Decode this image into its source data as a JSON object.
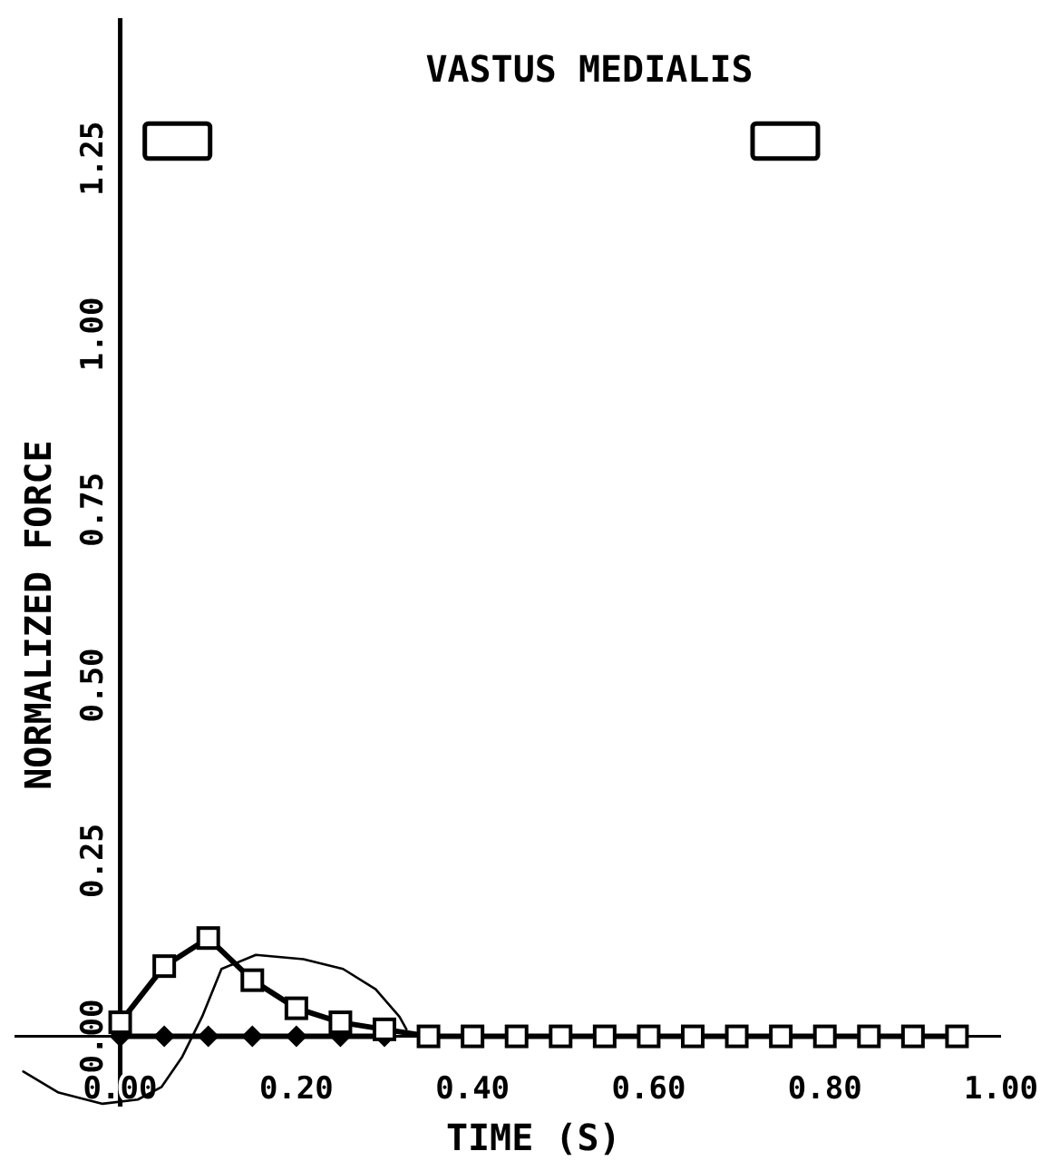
{
  "chart_data": {
    "type": "line",
    "title": "VASTUS MEDIALIS",
    "xlabel": "TIME (S)",
    "ylabel": "NORMALIZED FORCE",
    "xlim": [
      -0.12,
      1.0
    ],
    "ylim": [
      -0.1,
      1.45
    ],
    "xticks": [
      {
        "value": 0,
        "label": "0.00"
      },
      {
        "value": 0.2,
        "label": "0.20"
      },
      {
        "value": 0.4,
        "label": "0.40"
      },
      {
        "value": 0.6,
        "label": "0.60"
      },
      {
        "value": 0.8,
        "label": "0.80"
      },
      {
        "value": 1.0,
        "label": "1.00"
      }
    ],
    "yticks": [
      {
        "value": 0,
        "label": "0.00"
      },
      {
        "value": 0.25,
        "label": "0.25"
      },
      {
        "value": 0.5,
        "label": "0.50"
      },
      {
        "value": 0.75,
        "label": "0.75"
      },
      {
        "value": 1.0,
        "label": "1.00"
      },
      {
        "value": 1.25,
        "label": "1.25"
      }
    ],
    "series": [
      {
        "color": "#000000",
        "marker": "diamond",
        "x": [
          0,
          0.05,
          0.1,
          0.15,
          0.2,
          0.25,
          0.3
        ],
        "values": [
          0,
          0,
          0,
          0,
          0,
          0,
          0
        ]
      },
      {
        "color": "#000000",
        "marker": "square",
        "x": [
          0,
          0.05,
          0.1,
          0.15,
          0.2,
          0.25,
          0.3,
          0.35,
          0.4,
          0.45,
          0.5,
          0.55,
          0.6,
          0.65,
          0.7,
          0.75,
          0.8,
          0.85,
          0.9,
          0.95
        ],
        "values": [
          0.02,
          0.1,
          0.14,
          0.08,
          0.04,
          0.02,
          0.01,
          0,
          0,
          0,
          0,
          0,
          0,
          0,
          0,
          0,
          0,
          0,
          0,
          0
        ]
      },
      {
        "color": "#000000",
        "marker": "none",
        "x": [
          -0.11,
          -0.07,
          -0.02,
          0.02,
          0.047,
          0.07,
          0.093,
          0.115,
          0.154,
          0.208,
          0.253,
          0.29,
          0.317,
          0.325
        ],
        "values": [
          -0.05,
          -0.08,
          -0.096,
          -0.09,
          -0.072,
          -0.03,
          0.028,
          0.096,
          0.116,
          0.11,
          0.096,
          0.067,
          0.028,
          0.01
        ]
      },
      {
        "type": "bar",
        "color": "#000000",
        "x": [
          0.065,
          0.755
        ],
        "base": [
          1.25,
          1.25
        ],
        "values": [
          0.05,
          0.05
        ]
      }
    ]
  }
}
